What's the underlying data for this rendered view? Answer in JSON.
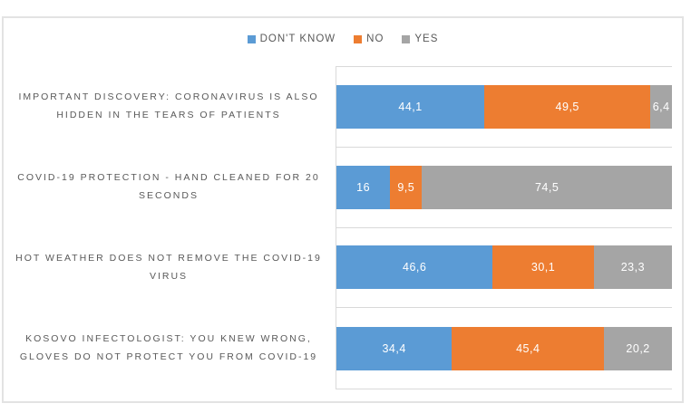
{
  "chart_data": {
    "type": "bar",
    "orientation": "horizontal",
    "stacked": true,
    "title": "",
    "xlabel": "",
    "ylabel": "",
    "xlim": [
      0,
      100
    ],
    "legend_position": "top",
    "gridlines": "category-boundaries",
    "decimal_separator": ",",
    "categories": [
      "IMPORTANT DISCOVERY: CORONAVIRUS IS ALSO HIDDEN IN THE TEARS OF PATIENTS",
      "COVID-19 PROTECTION - HAND CLEANED FOR 20 SECONDS",
      "HOT WEATHER DOES NOT REMOVE THE COVID-19 VIRUS",
      "KOSOVO INFECTOLOGIST: YOU KNEW WRONG, GLOVES DO NOT PROTECT YOU FROM COVID-19"
    ],
    "series": [
      {
        "name": "DON'T KNOW",
        "color": "#5B9BD5",
        "values": [
          44.1,
          16,
          46.6,
          34.4
        ]
      },
      {
        "name": "NO",
        "color": "#ED7D31",
        "values": [
          49.5,
          9.5,
          30.1,
          45.4
        ]
      },
      {
        "name": "YES",
        "color": "#A5A5A5",
        "values": [
          6.4,
          74.5,
          23.3,
          20.2
        ]
      }
    ],
    "value_labels_displayed": [
      [
        "44,1",
        "49,5",
        "6,4"
      ],
      [
        "16",
        "9,5",
        "74,5"
      ],
      [
        "46,6",
        "30,1",
        "23,3"
      ],
      [
        "34,4",
        "45,4",
        "20,2"
      ]
    ]
  },
  "colors": {
    "background": "#FFFFFF",
    "frame_border": "#E3E3E3",
    "gridline": "#D9D9D9",
    "axis_text": "#595959",
    "legend_text": "#595959",
    "value_label_text": "#FFFFFF"
  }
}
